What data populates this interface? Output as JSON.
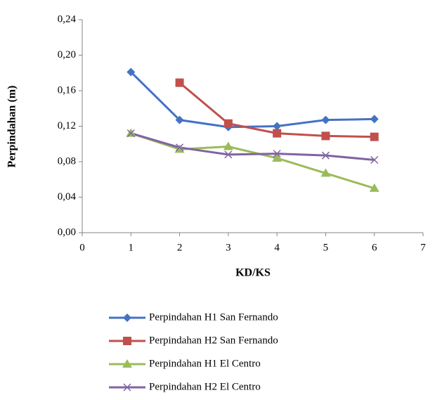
{
  "chart_data": {
    "type": "line",
    "x_label": "KD/KS",
    "y_label": "Perpindahan (m)",
    "x": [
      1,
      2,
      3,
      4,
      5,
      6
    ],
    "series": [
      {
        "name": "Perpindahan H1 San Fernando",
        "color": "#4472c4",
        "marker": "diamond",
        "values": [
          0.181,
          0.127,
          0.119,
          0.12,
          0.127,
          0.128
        ]
      },
      {
        "name": "Perpindahan H2 San Fernando",
        "color": "#c0504d",
        "marker": "square",
        "values": [
          null,
          0.169,
          0.123,
          0.112,
          0.109,
          0.108
        ]
      },
      {
        "name": "Perpindahan H1 El Centro",
        "color": "#9bbb59",
        "marker": "triangle",
        "values": [
          0.112,
          0.094,
          0.097,
          0.084,
          0.067,
          0.05
        ]
      },
      {
        "name": "Perpindahan H2 El Centro",
        "color": "#8064a2",
        "marker": "cross",
        "values": [
          0.112,
          0.096,
          0.088,
          0.089,
          0.087,
          0.082
        ]
      }
    ],
    "xlim": [
      0,
      7
    ],
    "xticks": [
      0,
      1,
      2,
      3,
      4,
      5,
      6,
      7
    ],
    "ylim": [
      0,
      0.24
    ],
    "yticks": [
      {
        "value": 0,
        "label": "0,00"
      },
      {
        "value": 0.04,
        "label": "0,04"
      },
      {
        "value": 0.08,
        "label": "0,08"
      },
      {
        "value": 0.12,
        "label": "0,12"
      },
      {
        "value": 0.16,
        "label": "0,16"
      },
      {
        "value": 0.2,
        "label": "0,20"
      },
      {
        "value": 0.24,
        "label": "0,24"
      }
    ],
    "grid": false,
    "legend": "bottom"
  }
}
